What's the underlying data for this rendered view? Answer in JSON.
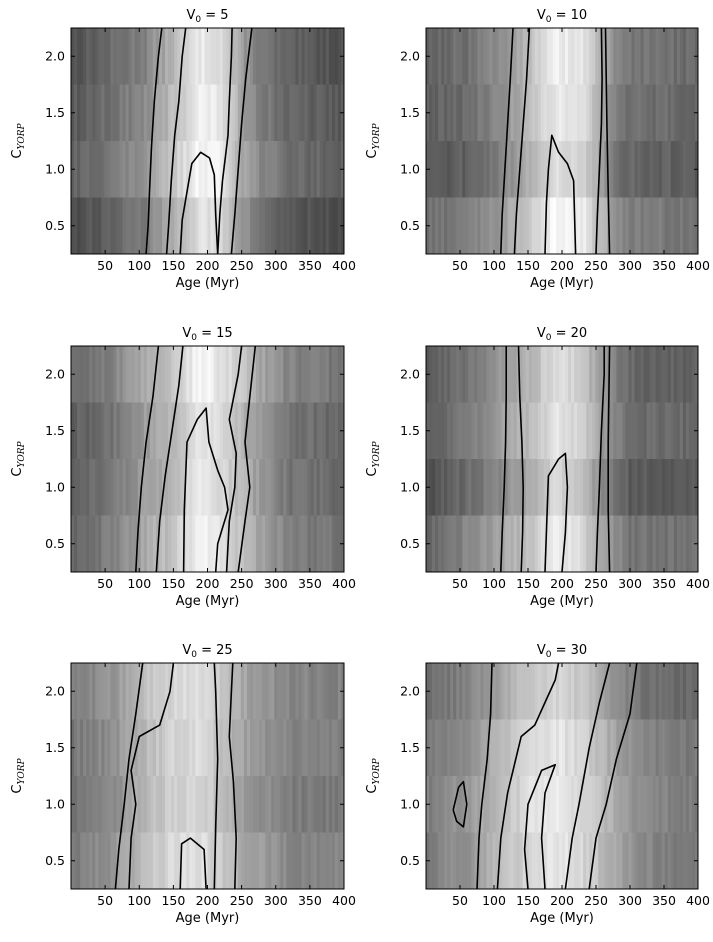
{
  "chart_data": [
    {
      "type": "heatmap",
      "title": "V₀ = 5",
      "xlabel": "Age (Myr)",
      "ylabel": "C_YORP",
      "xlim": [
        0,
        400
      ],
      "ylim": [
        0.25,
        2.25
      ],
      "xticks": [
        50,
        100,
        150,
        200,
        250,
        300,
        350,
        400
      ],
      "yticks": [
        0.5,
        1.0,
        1.5,
        2.0
      ],
      "colormap": "gray",
      "grid": false,
      "contours": [
        {
          "points": [
            [
              110,
              0.25
            ],
            [
              113,
              0.5
            ],
            [
              115,
              0.8
            ],
            [
              118,
              1.2
            ],
            [
              122,
              1.6
            ],
            [
              128,
              2.0
            ],
            [
              133,
              2.25
            ]
          ]
        },
        {
          "points": [
            [
              140,
              0.25
            ],
            [
              143,
              0.5
            ],
            [
              147,
              0.9
            ],
            [
              152,
              1.3
            ],
            [
              158,
              1.6
            ],
            [
              163,
              2.0
            ],
            [
              168,
              2.25
            ]
          ]
        },
        {
          "points": [
            [
              160,
              0.25
            ],
            [
              163,
              0.55
            ],
            [
              170,
              0.8
            ],
            [
              177,
              1.05
            ],
            [
              190,
              1.15
            ],
            [
              203,
              1.1
            ],
            [
              210,
              0.95
            ],
            [
              212,
              0.6
            ],
            [
              215,
              0.25
            ]
          ]
        },
        {
          "points": [
            [
              215,
              0.25
            ],
            [
              218,
              0.6
            ],
            [
              222,
              0.9
            ],
            [
              230,
              1.3
            ],
            [
              232,
              1.6
            ],
            [
              235,
              2.0
            ],
            [
              236,
              2.25
            ]
          ]
        },
        {
          "points": [
            [
              235,
              0.25
            ],
            [
              240,
              0.6
            ],
            [
              245,
              1.0
            ],
            [
              250,
              1.4
            ],
            [
              256,
              1.8
            ],
            [
              262,
              2.1
            ],
            [
              265,
              2.25
            ]
          ]
        }
      ]
    },
    {
      "type": "heatmap",
      "title": "V₀ = 10",
      "xlabel": "Age (Myr)",
      "ylabel": "C_YORP",
      "xlim": [
        0,
        400
      ],
      "ylim": [
        0.25,
        2.25
      ],
      "xticks": [
        50,
        100,
        150,
        200,
        250,
        300,
        350,
        400
      ],
      "yticks": [
        0.5,
        1.0,
        1.5,
        2.0
      ],
      "colormap": "gray",
      "grid": false,
      "contours": [
        {
          "points": [
            [
              110,
              0.25
            ],
            [
              112,
              0.6
            ],
            [
              116,
              1.0
            ],
            [
              120,
              1.4
            ],
            [
              124,
              1.8
            ],
            [
              128,
              2.25
            ]
          ]
        },
        {
          "points": [
            [
              130,
              0.25
            ],
            [
              133,
              0.6
            ],
            [
              138,
              1.0
            ],
            [
              143,
              1.4
            ],
            [
              148,
              1.8
            ],
            [
              152,
              2.25
            ]
          ]
        },
        {
          "points": [
            [
              175,
              0.25
            ],
            [
              177,
              0.7
            ],
            [
              180,
              1.0
            ],
            [
              185,
              1.3
            ],
            [
              195,
              1.15
            ],
            [
              208,
              1.05
            ],
            [
              217,
              0.9
            ],
            [
              220,
              0.25
            ]
          ]
        },
        {
          "points": [
            [
              250,
              0.25
            ],
            [
              252,
              0.6
            ],
            [
              255,
              1.0
            ],
            [
              258,
              1.4
            ],
            [
              259,
              1.8
            ],
            [
              258,
              2.25
            ]
          ]
        },
        {
          "points": [
            [
              270,
              0.25
            ],
            [
              268,
              0.8
            ],
            [
              266,
              1.4
            ],
            [
              264,
              2.25
            ]
          ]
        }
      ]
    },
    {
      "type": "heatmap",
      "title": "V₀ = 15",
      "xlabel": "Age (Myr)",
      "ylabel": "C_YORP",
      "xlim": [
        0,
        400
      ],
      "ylim": [
        0.25,
        2.25
      ],
      "xticks": [
        50,
        100,
        150,
        200,
        250,
        300,
        350,
        400
      ],
      "yticks": [
        0.5,
        1.0,
        1.5,
        2.0
      ],
      "colormap": "gray",
      "grid": false,
      "contours": [
        {
          "points": [
            [
              95,
              0.25
            ],
            [
              98,
              0.6
            ],
            [
              103,
              1.0
            ],
            [
              110,
              1.4
            ],
            [
              120,
              1.8
            ],
            [
              128,
              2.25
            ]
          ]
        },
        {
          "points": [
            [
              125,
              0.25
            ],
            [
              130,
              0.7
            ],
            [
              138,
              1.1
            ],
            [
              148,
              1.5
            ],
            [
              158,
              1.9
            ],
            [
              164,
              2.25
            ]
          ]
        },
        {
          "points": [
            [
              165,
              0.25
            ],
            [
              166,
              0.8
            ],
            [
              170,
              1.4
            ],
            [
              185,
              1.6
            ],
            [
              198,
              1.7
            ],
            [
              202,
              1.4
            ],
            [
              215,
              1.15
            ],
            [
              225,
              1.0
            ],
            [
              230,
              0.8
            ],
            [
              215,
              0.5
            ],
            [
              212,
              0.25
            ]
          ]
        },
        {
          "points": [
            [
              228,
              0.25
            ],
            [
              232,
              0.7
            ],
            [
              240,
              1.0
            ],
            [
              242,
              1.3
            ],
            [
              232,
              1.6
            ],
            [
              245,
              2.0
            ],
            [
              250,
              2.25
            ]
          ]
        },
        {
          "points": [
            [
              245,
              0.25
            ],
            [
              255,
              0.7
            ],
            [
              262,
              1.0
            ],
            [
              255,
              1.4
            ],
            [
              262,
              1.8
            ],
            [
              270,
              2.25
            ]
          ]
        }
      ]
    },
    {
      "type": "heatmap",
      "title": "V₀ = 20",
      "xlabel": "Age (Myr)",
      "ylabel": "C_YORP",
      "xlim": [
        0,
        400
      ],
      "ylim": [
        0.25,
        2.25
      ],
      "xticks": [
        50,
        100,
        150,
        200,
        250,
        300,
        350,
        400
      ],
      "yticks": [
        0.5,
        1.0,
        1.5,
        2.0
      ],
      "colormap": "gray",
      "grid": false,
      "contours": [
        {
          "points": [
            [
              110,
              0.25
            ],
            [
              112,
              0.6
            ],
            [
              115,
              1.0
            ],
            [
              117,
              1.4
            ],
            [
              118,
              1.8
            ],
            [
              118,
              2.25
            ]
          ]
        },
        {
          "points": [
            [
              140,
              0.25
            ],
            [
              142,
              0.6
            ],
            [
              143,
              1.0
            ],
            [
              141,
              1.4
            ],
            [
              138,
              1.8
            ],
            [
              136,
              2.25
            ]
          ]
        },
        {
          "points": [
            [
              175,
              0.25
            ],
            [
              177,
              0.6
            ],
            [
              180,
              1.1
            ],
            [
              195,
              1.25
            ],
            [
              205,
              1.3
            ],
            [
              208,
              1.0
            ],
            [
              205,
              0.6
            ],
            [
              200,
              0.25
            ]
          ]
        },
        {
          "points": [
            [
              250,
              0.25
            ],
            [
              252,
              0.6
            ],
            [
              255,
              1.0
            ],
            [
              258,
              1.5
            ],
            [
              262,
              2.0
            ],
            [
              262,
              2.25
            ]
          ]
        },
        {
          "points": [
            [
              270,
              0.25
            ],
            [
              268,
              0.8
            ],
            [
              268,
              1.4
            ],
            [
              270,
              2.25
            ]
          ]
        }
      ]
    },
    {
      "type": "heatmap",
      "title": "V₀ = 25",
      "xlabel": "Age (Myr)",
      "ylabel": "C_YORP",
      "xlim": [
        0,
        400
      ],
      "ylim": [
        0.25,
        2.25
      ],
      "xticks": [
        50,
        100,
        150,
        200,
        250,
        300,
        350,
        400
      ],
      "yticks": [
        0.5,
        1.0,
        1.5,
        2.0
      ],
      "colormap": "gray",
      "grid": false,
      "contours": [
        {
          "points": [
            [
              65,
              0.25
            ],
            [
              70,
              0.6
            ],
            [
              78,
              1.0
            ],
            [
              85,
              1.4
            ],
            [
              95,
              1.8
            ],
            [
              105,
              2.25
            ]
          ]
        },
        {
          "points": [
            [
              85,
              0.25
            ],
            [
              88,
              0.7
            ],
            [
              95,
              1.0
            ],
            [
              88,
              1.3
            ],
            [
              100,
              1.6
            ],
            [
              130,
              1.7
            ],
            [
              145,
              2.0
            ],
            [
              150,
              2.25
            ]
          ]
        },
        {
          "points": [
            [
              160,
              0.25
            ],
            [
              162,
              0.65
            ],
            [
              175,
              0.7
            ],
            [
              195,
              0.6
            ],
            [
              198,
              0.25
            ]
          ]
        },
        {
          "points": [
            [
              210,
              0.25
            ],
            [
              212,
              0.8
            ],
            [
              215,
              1.4
            ],
            [
              212,
              2.0
            ],
            [
              210,
              2.25
            ]
          ]
        },
        {
          "points": [
            [
              240,
              0.25
            ],
            [
              242,
              0.7
            ],
            [
              238,
              1.2
            ],
            [
              232,
              1.6
            ],
            [
              235,
              2.0
            ],
            [
              237,
              2.25
            ]
          ]
        }
      ]
    },
    {
      "type": "heatmap",
      "title": "V₀ = 30",
      "xlabel": "Age (Myr)",
      "ylabel": "C_YORP",
      "xlim": [
        0,
        400
      ],
      "ylim": [
        0.25,
        2.25
      ],
      "xticks": [
        50,
        100,
        150,
        200,
        250,
        300,
        350,
        400
      ],
      "yticks": [
        0.5,
        1.0,
        1.5,
        2.0
      ],
      "colormap": "gray",
      "grid": false,
      "contours": [
        {
          "points": [
            [
              75,
              0.25
            ],
            [
              78,
              0.7
            ],
            [
              82,
              1.0
            ],
            [
              90,
              1.4
            ],
            [
              95,
              1.8
            ],
            [
              97,
              2.25
            ]
          ]
        },
        {
          "points": [
            [
              40,
              0.95
            ],
            [
              48,
              1.15
            ],
            [
              55,
              1.2
            ],
            [
              60,
              1.0
            ],
            [
              55,
              0.8
            ],
            [
              45,
              0.85
            ],
            [
              40,
              0.95
            ]
          ]
        },
        {
          "points": [
            [
              105,
              0.25
            ],
            [
              110,
              0.7
            ],
            [
              120,
              1.1
            ],
            [
              140,
              1.6
            ],
            [
              160,
              1.7
            ],
            [
              175,
              1.9
            ],
            [
              190,
              2.1
            ],
            [
              195,
              2.25
            ]
          ]
        },
        {
          "points": [
            [
              150,
              0.25
            ],
            [
              145,
              0.6
            ],
            [
              150,
              1.0
            ],
            [
              170,
              1.3
            ],
            [
              190,
              1.35
            ],
            [
              175,
              1.1
            ],
            [
              170,
              0.7
            ],
            [
              175,
              0.25
            ]
          ]
        },
        {
          "points": [
            [
              205,
              0.25
            ],
            [
              215,
              0.7
            ],
            [
              225,
              1.0
            ],
            [
              240,
              1.5
            ],
            [
              255,
              1.9
            ],
            [
              270,
              2.25
            ]
          ]
        },
        {
          "points": [
            [
              240,
              0.25
            ],
            [
              250,
              0.7
            ],
            [
              265,
              1.0
            ],
            [
              280,
              1.4
            ],
            [
              300,
              1.8
            ],
            [
              310,
              2.25
            ]
          ]
        }
      ]
    }
  ]
}
